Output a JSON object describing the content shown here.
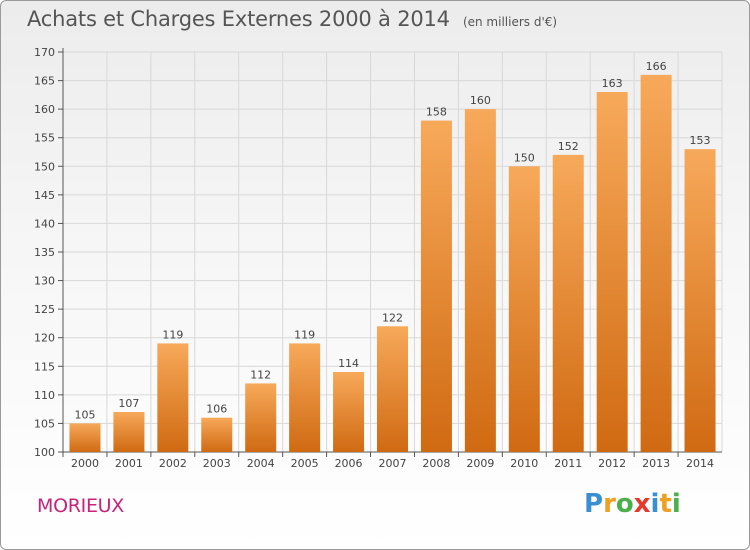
{
  "header": {
    "title": "Achats et Charges Externes 2000 à 2014",
    "subtitle": "(en milliers d'€)"
  },
  "footer": {
    "commune": "MORIEUX",
    "logo": [
      "P",
      "r",
      "o",
      "x",
      "i",
      "t",
      "i"
    ]
  },
  "colors": {
    "bar_top": "#f7a95a",
    "bar_bottom": "#d06a12",
    "commune": "#c8237a",
    "grid": "#d8d8d8"
  },
  "chart_data": {
    "type": "bar",
    "categories": [
      "2000",
      "2001",
      "2002",
      "2003",
      "2004",
      "2005",
      "2006",
      "2007",
      "2008",
      "2009",
      "2010",
      "2011",
      "2012",
      "2013",
      "2014"
    ],
    "series": [
      {
        "values": [
          105,
          107,
          119,
          106,
          112,
          119,
          114,
          122,
          158,
          160,
          150,
          152,
          163,
          166,
          153
        ]
      }
    ],
    "title": "Achats et Charges Externes 2000 à 2014",
    "subtitle": "(en milliers d'€)",
    "xlabel": "",
    "ylabel": "",
    "ylim": [
      100,
      170
    ],
    "yticks": [
      100,
      105,
      110,
      115,
      120,
      125,
      130,
      135,
      140,
      145,
      150,
      155,
      160,
      165,
      170
    ],
    "grid": true,
    "legend": "none"
  }
}
